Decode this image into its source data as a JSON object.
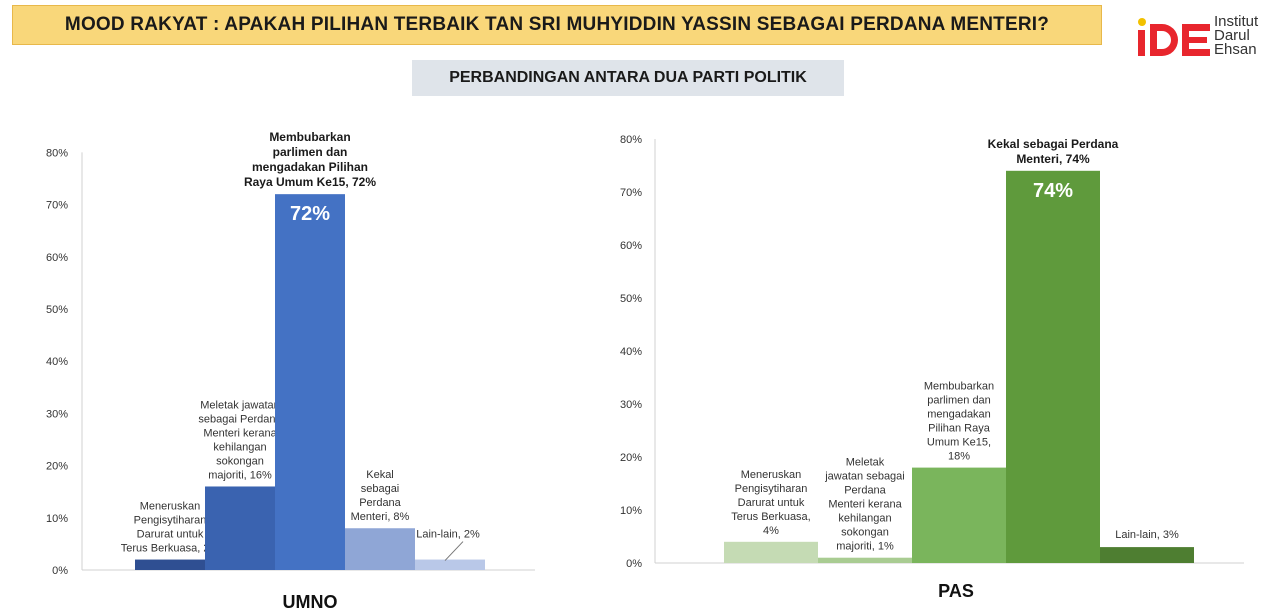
{
  "header": {
    "title": "MOOD RAKYAT : APAKAH PILIHAN TERBAIK TAN SRI MUHYIDDIN YASSIN SEBAGAI PERDANA MENTERI?",
    "subtitle": "PERBANDINGAN ANTARA DUA PARTI POLITIK"
  },
  "logo": {
    "mark": "iDE",
    "lines": [
      "Institut",
      "Darul",
      "Ehsan"
    ],
    "color": "#e8262d"
  },
  "chart_data": [
    {
      "type": "bar",
      "xlabel": "UMNO",
      "ylim": [
        0,
        80
      ],
      "yticks": [
        "0%",
        "10%",
        "20%",
        "30%",
        "40%",
        "50%",
        "60%",
        "70%",
        "80%"
      ],
      "categories": [
        "Meneruskan Pengisytiharan Darurat untuk Terus Berkuasa",
        "Meletak jawatan sebagai Perdana Menteri kerana kehilangan sokongan majoriti",
        "Membubarkan parlimen dan mengadakan Pilihan Raya Umum Ke15",
        "Kekal sebagai Perdana Menteri",
        "Lain-lain"
      ],
      "values": [
        2,
        16,
        72,
        8,
        2
      ],
      "colors": [
        "#2f4f92",
        "#3a63b0",
        "#4472c4",
        "#8fa6d6",
        "#b9c8e8"
      ],
      "labels": [
        [
          "Meneruskan",
          "Pengisytiharan",
          "Darurat untuk",
          "Terus Berkuasa, 2%"
        ],
        [
          "Meletak jawatan",
          "sebagai Perdana",
          "Menteri kerana",
          "kehilangan",
          "sokongan",
          "majoriti, 16%"
        ],
        [
          "Membubarkan",
          "parlimen dan",
          "mengadakan Pilihan",
          "Raya Umum Ke15, 72%"
        ],
        [
          "Kekal",
          "sebagai",
          "Perdana",
          "Menteri, 8%"
        ],
        [
          "Lain-lain, 2%"
        ]
      ],
      "highlight_index": 2,
      "highlight_text": "72%"
    },
    {
      "type": "bar",
      "xlabel": "PAS",
      "ylim": [
        0,
        80
      ],
      "yticks": [
        "0%",
        "10%",
        "20%",
        "30%",
        "40%",
        "50%",
        "60%",
        "70%",
        "80%"
      ],
      "categories": [
        "Meneruskan Pengisytiharan Darurat untuk Terus Berkuasa",
        "Meletak jawatan sebagai Perdana Menteri kerana kehilangan sokongan majoriti",
        "Membubarkan parlimen dan mengadakan Pilihan Raya Umum Ke15",
        "Kekal sebagai Perdana Menteri",
        "Lain-lain"
      ],
      "values": [
        4,
        1,
        18,
        74,
        3
      ],
      "colors": [
        "#c5dbb4",
        "#a9cc92",
        "#7ab55c",
        "#5f9a3c",
        "#4e7e31"
      ],
      "labels": [
        [
          "Meneruskan",
          "Pengisytiharan",
          "Darurat untuk",
          "Terus Berkuasa,",
          "4%"
        ],
        [
          "Meletak",
          "jawatan sebagai",
          "Perdana",
          "Menteri kerana",
          "kehilangan",
          "sokongan",
          "majoriti, 1%"
        ],
        [
          "Membubarkan",
          "parlimen dan",
          "mengadakan",
          "Pilihan Raya",
          "Umum Ke15,",
          "18%"
        ],
        [
          "Kekal sebagai Perdana",
          "Menteri, 74%"
        ],
        [
          "Lain-lain, 3%"
        ]
      ],
      "highlight_index": 3,
      "highlight_text": "74%"
    }
  ]
}
